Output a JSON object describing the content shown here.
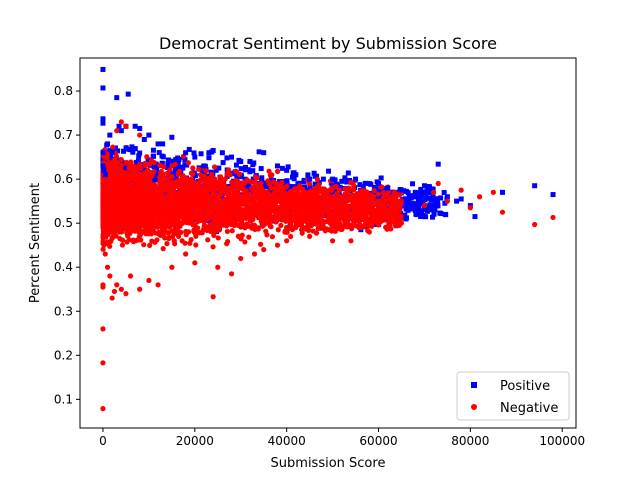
{
  "chart_data": {
    "type": "scatter",
    "title": "Democrat Sentiment by Submission Score",
    "xlabel": "Submission Score",
    "ylabel": "Percent Sentiment",
    "xlim": [
      -5000,
      103000
    ],
    "ylim": [
      0.035,
      0.875
    ],
    "grid": false,
    "legend_position": "lower-right",
    "x_ticks": [
      0,
      20000,
      40000,
      60000,
      80000,
      100000
    ],
    "x_tick_labels": [
      "0",
      "20000",
      "40000",
      "60000",
      "80000",
      "100000"
    ],
    "y_ticks": [
      0.1,
      0.2,
      0.3,
      0.4,
      0.5,
      0.6,
      0.7,
      0.8
    ],
    "y_tick_labels": [
      "0.1",
      "0.2",
      "0.3",
      "0.4",
      "0.5",
      "0.6",
      "0.7",
      "0.8"
    ],
    "colors": {
      "positive": "#0000ff",
      "negative": "#ff0000"
    },
    "series": [
      {
        "name": "Positive",
        "marker": "square",
        "color": "#0000ff",
        "points": [
          [
            0,
            0.849
          ],
          [
            0,
            0.807
          ],
          [
            0,
            0.737
          ],
          [
            0,
            0.727
          ],
          [
            0,
            0.66
          ],
          [
            0,
            0.63
          ],
          [
            200,
            0.62
          ],
          [
            500,
            0.61
          ],
          [
            1000,
            0.68
          ],
          [
            1500,
            0.7
          ],
          [
            2000,
            0.66
          ],
          [
            3000,
            0.785
          ],
          [
            3500,
            0.72
          ],
          [
            4000,
            0.71
          ],
          [
            5000,
            0.72
          ],
          [
            5500,
            0.793
          ],
          [
            7000,
            0.72
          ],
          [
            8000,
            0.715
          ],
          [
            9000,
            0.69
          ],
          [
            10000,
            0.7
          ],
          [
            12000,
            0.68
          ],
          [
            13000,
            0.68
          ],
          [
            15000,
            0.695
          ],
          [
            18000,
            0.66
          ],
          [
            20000,
            0.65
          ],
          [
            22000,
            0.63
          ],
          [
            24000,
            0.665
          ],
          [
            26000,
            0.66
          ],
          [
            28000,
            0.65
          ],
          [
            30000,
            0.64
          ],
          [
            32000,
            0.64
          ],
          [
            34000,
            0.662
          ],
          [
            35000,
            0.66
          ],
          [
            38000,
            0.63
          ],
          [
            40000,
            0.62
          ],
          [
            42000,
            0.61
          ],
          [
            45000,
            0.6
          ],
          [
            48000,
            0.6
          ],
          [
            50000,
            0.6
          ],
          [
            52000,
            0.595
          ],
          [
            55000,
            0.6
          ],
          [
            58000,
            0.59
          ],
          [
            60000,
            0.59
          ],
          [
            62000,
            0.58
          ],
          [
            65000,
            0.575
          ],
          [
            68000,
            0.57
          ],
          [
            70000,
            0.585
          ],
          [
            73000,
            0.634
          ],
          [
            75000,
            0.56
          ],
          [
            77000,
            0.55
          ],
          [
            78000,
            0.555
          ],
          [
            80000,
            0.54
          ],
          [
            81000,
            0.515
          ],
          [
            87000,
            0.57
          ],
          [
            94000,
            0.585
          ],
          [
            98000,
            0.565
          ]
        ]
      },
      {
        "name": "Negative",
        "marker": "circle",
        "color": "#ff0000",
        "points": [
          [
            0,
            0.079
          ],
          [
            0,
            0.183
          ],
          [
            0,
            0.26
          ],
          [
            0,
            0.355
          ],
          [
            0,
            0.36
          ],
          [
            200,
            0.45
          ],
          [
            500,
            0.43
          ],
          [
            1000,
            0.4
          ],
          [
            1500,
            0.38
          ],
          [
            2000,
            0.33
          ],
          [
            2500,
            0.345
          ],
          [
            3000,
            0.36
          ],
          [
            4000,
            0.35
          ],
          [
            5000,
            0.34
          ],
          [
            6000,
            0.38
          ],
          [
            8000,
            0.35
          ],
          [
            10000,
            0.37
          ],
          [
            12000,
            0.36
          ],
          [
            15000,
            0.4
          ],
          [
            18000,
            0.43
          ],
          [
            20000,
            0.41
          ],
          [
            24000,
            0.333
          ],
          [
            25000,
            0.4
          ],
          [
            28000,
            0.385
          ],
          [
            30000,
            0.42
          ],
          [
            33000,
            0.43
          ],
          [
            35000,
            0.44
          ],
          [
            38000,
            0.45
          ],
          [
            40000,
            0.46
          ],
          [
            45000,
            0.47
          ],
          [
            50000,
            0.46
          ],
          [
            54000,
            0.46
          ],
          [
            58000,
            0.48
          ],
          [
            60000,
            0.5
          ],
          [
            65000,
            0.5
          ],
          [
            70000,
            0.54
          ],
          [
            72000,
            0.57
          ],
          [
            73000,
            0.59
          ],
          [
            75000,
            0.55
          ],
          [
            78000,
            0.575
          ],
          [
            80000,
            0.535
          ],
          [
            82000,
            0.56
          ],
          [
            85000,
            0.57
          ],
          [
            87000,
            0.525
          ],
          [
            94000,
            0.497
          ],
          [
            98000,
            0.513
          ],
          [
            3000,
            0.71
          ],
          [
            4000,
            0.73
          ],
          [
            5000,
            0.72
          ],
          [
            8000,
            0.7
          ]
        ]
      }
    ],
    "cloud_fill": [
      {
        "series": "Positive",
        "x": [
          0,
          75000
        ],
        "y_upper": [
          0.71,
          0.6
        ],
        "y_lower": [
          0.46,
          0.48
        ],
        "count": 1400
      },
      {
        "series": "Negative",
        "x": [
          0,
          65000
        ],
        "y_upper": [
          0.68,
          0.59
        ],
        "y_lower": [
          0.42,
          0.47
        ],
        "count": 3400
      }
    ]
  }
}
